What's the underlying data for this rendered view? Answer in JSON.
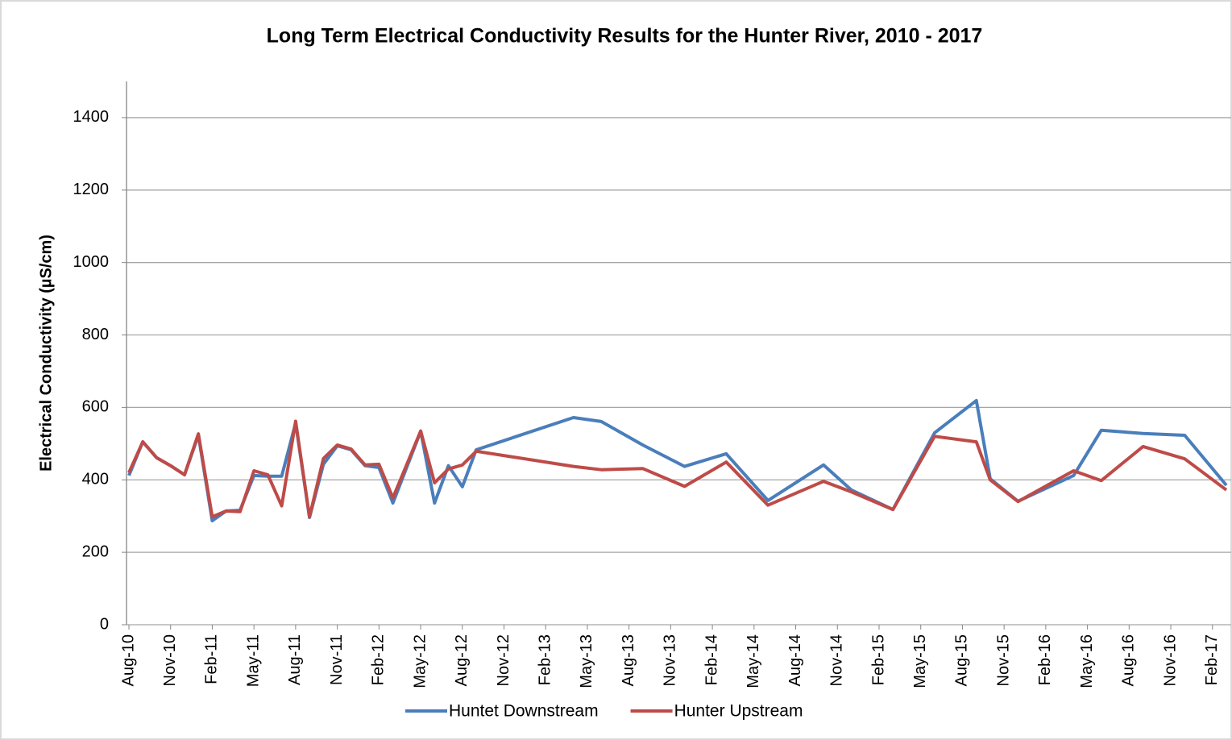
{
  "chart_data": {
    "type": "line",
    "title": "Long Term Electrical Conductivity Results for the Hunter River, 2010 - 2017",
    "y_label": "Electrical Conductivity (µS/cm)",
    "x": [
      "2010-08",
      "2010-09",
      "2010-10",
      "2010-11",
      "2010-12",
      "2011-01",
      "2011-02",
      "2011-03",
      "2011-04",
      "2011-05",
      "2011-06",
      "2011-07",
      "2011-08",
      "2011-09",
      "2011-10",
      "2011-11",
      "2011-12",
      "2012-01",
      "2012-02",
      "2012-03",
      "2012-05",
      "2012-06",
      "2012-07",
      "2012-08",
      "2012-09",
      "2013-04",
      "2013-06",
      "2013-09",
      "2013-12",
      "2014-03",
      "2014-06",
      "2014-10",
      "2014-12",
      "2015-03",
      "2015-06",
      "2015-09",
      "2015-10",
      "2015-12",
      "2016-04",
      "2016-06",
      "2016-09",
      "2016-12",
      "2017-03"
    ],
    "series": [
      {
        "name": "Huntet Downstream",
        "color": "#4a7ebb",
        "values": [
          412,
          505,
          461,
          439,
          414,
          523,
          287,
          314,
          316,
          412,
          410,
          410,
          557,
          296,
          443,
          494,
          483,
          439,
          434,
          336,
          534,
          336,
          439,
          381,
          483,
          572,
          561,
          496,
          437,
          472,
          343,
          441,
          372,
          318,
          530,
          619,
          403,
          341,
          412,
          537,
          528,
          523,
          385
        ]
      },
      {
        "name": "Hunter Upstream",
        "color": "#be4b48",
        "values": [
          420,
          505,
          461,
          439,
          414,
          527,
          298,
          314,
          312,
          425,
          414,
          328,
          562,
          298,
          459,
          496,
          485,
          441,
          443,
          350,
          535,
          392,
          430,
          441,
          479,
          437,
          428,
          431,
          382,
          449,
          330,
          396,
          367,
          318,
          520,
          505,
          400,
          340,
          425,
          398,
          492,
          458,
          372
        ]
      }
    ],
    "xlim": [
      "2010-08",
      "2017-03"
    ],
    "xticks": [
      {
        "value": "2010-08",
        "label": "Aug-10"
      },
      {
        "value": "2010-11",
        "label": "Nov-10"
      },
      {
        "value": "2011-02",
        "label": "Feb-11"
      },
      {
        "value": "2011-05",
        "label": "May-11"
      },
      {
        "value": "2011-08",
        "label": "Aug-11"
      },
      {
        "value": "2011-11",
        "label": "Nov-11"
      },
      {
        "value": "2012-02",
        "label": "Feb-12"
      },
      {
        "value": "2012-05",
        "label": "May-12"
      },
      {
        "value": "2012-08",
        "label": "Aug-12"
      },
      {
        "value": "2012-11",
        "label": "Nov-12"
      },
      {
        "value": "2013-02",
        "label": "Feb-13"
      },
      {
        "value": "2013-05",
        "label": "May-13"
      },
      {
        "value": "2013-08",
        "label": "Aug-13"
      },
      {
        "value": "2013-11",
        "label": "Nov-13"
      },
      {
        "value": "2014-02",
        "label": "Feb-14"
      },
      {
        "value": "2014-05",
        "label": "May-14"
      },
      {
        "value": "2014-08",
        "label": "Aug-14"
      },
      {
        "value": "2014-11",
        "label": "Nov-14"
      },
      {
        "value": "2015-02",
        "label": "Feb-15"
      },
      {
        "value": "2015-05",
        "label": "May-15"
      },
      {
        "value": "2015-08",
        "label": "Aug-15"
      },
      {
        "value": "2015-11",
        "label": "Nov-15"
      },
      {
        "value": "2016-02",
        "label": "Feb-16"
      },
      {
        "value": "2016-05",
        "label": "May-16"
      },
      {
        "value": "2016-08",
        "label": "Aug-16"
      },
      {
        "value": "2016-11",
        "label": "Nov-16"
      },
      {
        "value": "2017-02",
        "label": "Feb-17"
      }
    ],
    "ylim": [
      0,
      1500
    ],
    "yticks": [
      0,
      200,
      400,
      600,
      800,
      1000,
      1200,
      1400
    ],
    "grid": true,
    "legend": "bottom"
  }
}
